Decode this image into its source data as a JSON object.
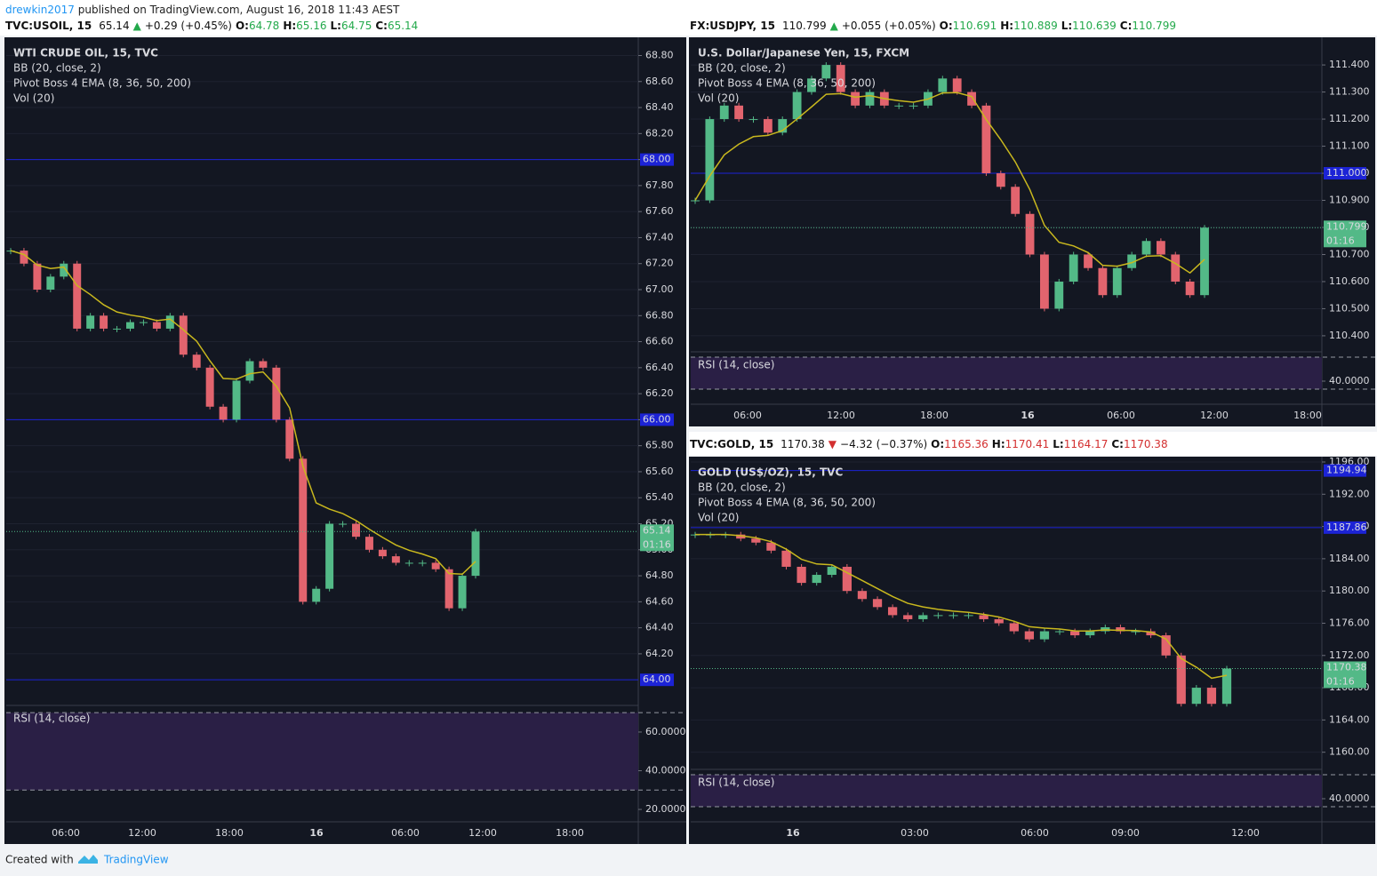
{
  "top_line": {
    "author": "drewkin2017",
    "text": " published on TradingView.com, August 16, 2018 11:43 AEST"
  },
  "footer": {
    "created": "Created with",
    "brand": "TradingView"
  },
  "panels": [
    {
      "header": {
        "symbol": "TVC:USOIL, 15",
        "last": "65.14",
        "direction": "up",
        "change": "+0.29 (+0.45%)",
        "o_label": "O:",
        "o": "64.78",
        "h_label": "H:",
        "h": "65.16",
        "l_label": "L:",
        "l": "64.75",
        "c_label": "C:",
        "c": "65.14"
      },
      "legend": [
        "WTI CRUDE OIL, 15, TVC",
        "BB (20, close, 2)",
        "Pivot Boss 4 EMA (8, 36, 50, 200)",
        "Vol (20)"
      ],
      "rsi_label": "RSI (14, close)",
      "ylim": [
        63.81,
        68.94
      ],
      "yticks": [
        {
          "value": 64.2,
          "label": "64.20"
        },
        {
          "value": 64.4,
          "label": "64.40"
        },
        {
          "value": 64.6,
          "label": "64.60"
        },
        {
          "value": 64.8,
          "label": "64.80"
        },
        {
          "value": 65.0,
          "label": "65.00"
        },
        {
          "value": 65.2,
          "label": "65.20"
        },
        {
          "value": 65.4,
          "label": "65.40"
        },
        {
          "value": 65.6,
          "label": "65.60"
        },
        {
          "value": 65.8,
          "label": "65.80"
        },
        {
          "value": 66.0,
          "label": "66.00"
        },
        {
          "value": 66.2,
          "label": "66.20"
        },
        {
          "value": 66.4,
          "label": "66.40"
        },
        {
          "value": 66.6,
          "label": "66.60"
        },
        {
          "value": 66.8,
          "label": "66.80"
        },
        {
          "value": 67.0,
          "label": "67.00"
        },
        {
          "value": 67.2,
          "label": "67.20"
        },
        {
          "value": 67.4,
          "label": "67.40"
        },
        {
          "value": 67.6,
          "label": "67.60"
        },
        {
          "value": 67.8,
          "label": "67.80"
        },
        {
          "value": 68.0,
          "label": "68.00"
        },
        {
          "value": 68.2,
          "label": "68.20"
        },
        {
          "value": 68.4,
          "label": "68.40"
        },
        {
          "value": 68.6,
          "label": "68.60"
        },
        {
          "value": 68.8,
          "label": "68.80"
        }
      ],
      "levels": [
        {
          "value": 68.0,
          "label": "68.00"
        },
        {
          "value": 66.0,
          "label": "66.00"
        },
        {
          "value": 64.0,
          "label": "64.00"
        }
      ],
      "last_price": {
        "value": 65.14,
        "label": "65.14",
        "countdown": "01:16"
      },
      "rsi_ylim": [
        13.6,
        73.3
      ],
      "rsi_yticks": [
        {
          "value": 60,
          "label": "60.0000"
        },
        {
          "value": 40,
          "label": "40.0000"
        },
        {
          "value": 20,
          "label": "20.0000"
        }
      ],
      "time_labels": [
        "06:00",
        "12:00",
        "18:00",
        "16",
        "06:00",
        "12:00",
        "18:00"
      ],
      "closes": [
        67.3,
        67.2,
        67.0,
        67.1,
        67.2,
        66.7,
        66.8,
        66.7,
        66.7,
        66.75,
        66.75,
        66.7,
        66.8,
        66.5,
        66.4,
        66.1,
        66.0,
        66.3,
        66.45,
        66.4,
        66.0,
        65.7,
        64.6,
        64.7,
        65.2,
        65.2,
        65.1,
        65.0,
        64.95,
        64.9,
        64.9,
        64.9,
        64.85,
        64.55,
        64.8,
        65.14
      ]
    },
    {
      "header": {
        "symbol": "FX:USDJPY, 15",
        "last": "110.799",
        "direction": "up",
        "change": "+0.055 (+0.05%)",
        "o_label": "O:",
        "o": "110.691",
        "h_label": "H:",
        "h": "110.889",
        "l_label": "L:",
        "l": "110.639",
        "c_label": "C:",
        "c": "110.799"
      },
      "legend": [
        "U.S. Dollar/Japanese Yen, 15, FXCM",
        "BB (20, close, 2)",
        "Pivot Boss 4 EMA (8, 36, 50, 200)",
        "Vol (20)"
      ],
      "rsi_label": "RSI (14, close)",
      "ylim": [
        110.344,
        111.502
      ],
      "yticks": [
        {
          "value": 110.4,
          "label": "110.400"
        },
        {
          "value": 110.5,
          "label": "110.500"
        },
        {
          "value": 110.6,
          "label": "110.600"
        },
        {
          "value": 110.7,
          "label": "110.700"
        },
        {
          "value": 110.8,
          "label": "110.800"
        },
        {
          "value": 110.9,
          "label": "110.900"
        },
        {
          "value": 111.0,
          "label": "111.000"
        },
        {
          "value": 111.1,
          "label": "111.100"
        },
        {
          "value": 111.2,
          "label": "111.200"
        },
        {
          "value": 111.3,
          "label": "111.300"
        },
        {
          "value": 111.4,
          "label": "111.400"
        }
      ],
      "levels": [
        {
          "value": 111.0,
          "label": "111.000"
        }
      ],
      "last_price": {
        "value": 110.799,
        "label": "110.799",
        "countdown": "01:16"
      },
      "rsi_ylim": [
        11.1,
        75.6
      ],
      "rsi_yticks": [
        {
          "value": 40,
          "label": "40.0000"
        }
      ],
      "time_labels": [
        "06:00",
        "12:00",
        "18:00",
        "16",
        "06:00",
        "12:00",
        "18:00"
      ],
      "closes": [
        110.9,
        111.2,
        111.25,
        111.2,
        111.2,
        111.15,
        111.2,
        111.3,
        111.35,
        111.4,
        111.3,
        111.25,
        111.3,
        111.25,
        111.25,
        111.25,
        111.3,
        111.35,
        111.3,
        111.25,
        111.0,
        110.95,
        110.85,
        110.7,
        110.5,
        110.6,
        110.7,
        110.65,
        110.55,
        110.65,
        110.7,
        110.75,
        110.7,
        110.6,
        110.55,
        110.799
      ]
    },
    {
      "header": {
        "symbol": "TVC:GOLD, 15",
        "last": "1170.38",
        "direction": "down",
        "change": "−4.32 (−0.37%)",
        "o_label": "O:",
        "o": "1165.36",
        "h_label": "H:",
        "h": "1170.41",
        "l_label": "L:",
        "l": "1164.17",
        "c_label": "C:",
        "c": "1170.38"
      },
      "legend": [
        "GOLD (US$/OZ), 15, TVC",
        "BB (20, close, 2)",
        "Pivot Boss 4 EMA (8, 36, 50, 200)",
        "Vol (20)"
      ],
      "rsi_label": "RSI (14, close)",
      "ylim": [
        1157.98,
        1196.66
      ],
      "yticks": [
        {
          "value": 1160,
          "label": "1160.00"
        },
        {
          "value": 1164,
          "label": "1164.00"
        },
        {
          "value": 1168,
          "label": "1168.00"
        },
        {
          "value": 1172,
          "label": "1172.00"
        },
        {
          "value": 1176,
          "label": "1176.00"
        },
        {
          "value": 1180,
          "label": "1180.00"
        },
        {
          "value": 1184,
          "label": "1184.00"
        },
        {
          "value": 1188,
          "label": "1188.00"
        },
        {
          "value": 1192,
          "label": "1192.00"
        },
        {
          "value": 1196,
          "label": "1196.00"
        }
      ],
      "levels": [
        {
          "value": 1194.94,
          "label": "1194.94"
        },
        {
          "value": 1187.86,
          "label": "1187.86"
        }
      ],
      "last_price": {
        "value": 1170.38,
        "label": "1170.38",
        "countdown": "01:16"
      },
      "rsi_ylim": [
        11.1,
        75.6
      ],
      "rsi_yticks": [
        {
          "value": 40,
          "label": "40.0000"
        }
      ],
      "time_labels": [
        "16",
        "03:00",
        "06:00",
        "09:00",
        "12:00"
      ],
      "closes": [
        1187,
        1187,
        1187,
        1186.5,
        1186,
        1185,
        1183,
        1181,
        1182,
        1183,
        1180,
        1179,
        1178,
        1177,
        1176.5,
        1177,
        1177,
        1177,
        1177,
        1176.5,
        1176,
        1175,
        1174,
        1175,
        1175,
        1174.5,
        1175,
        1175.5,
        1175,
        1175,
        1174.5,
        1172,
        1166,
        1168,
        1166,
        1170.38
      ]
    }
  ]
}
